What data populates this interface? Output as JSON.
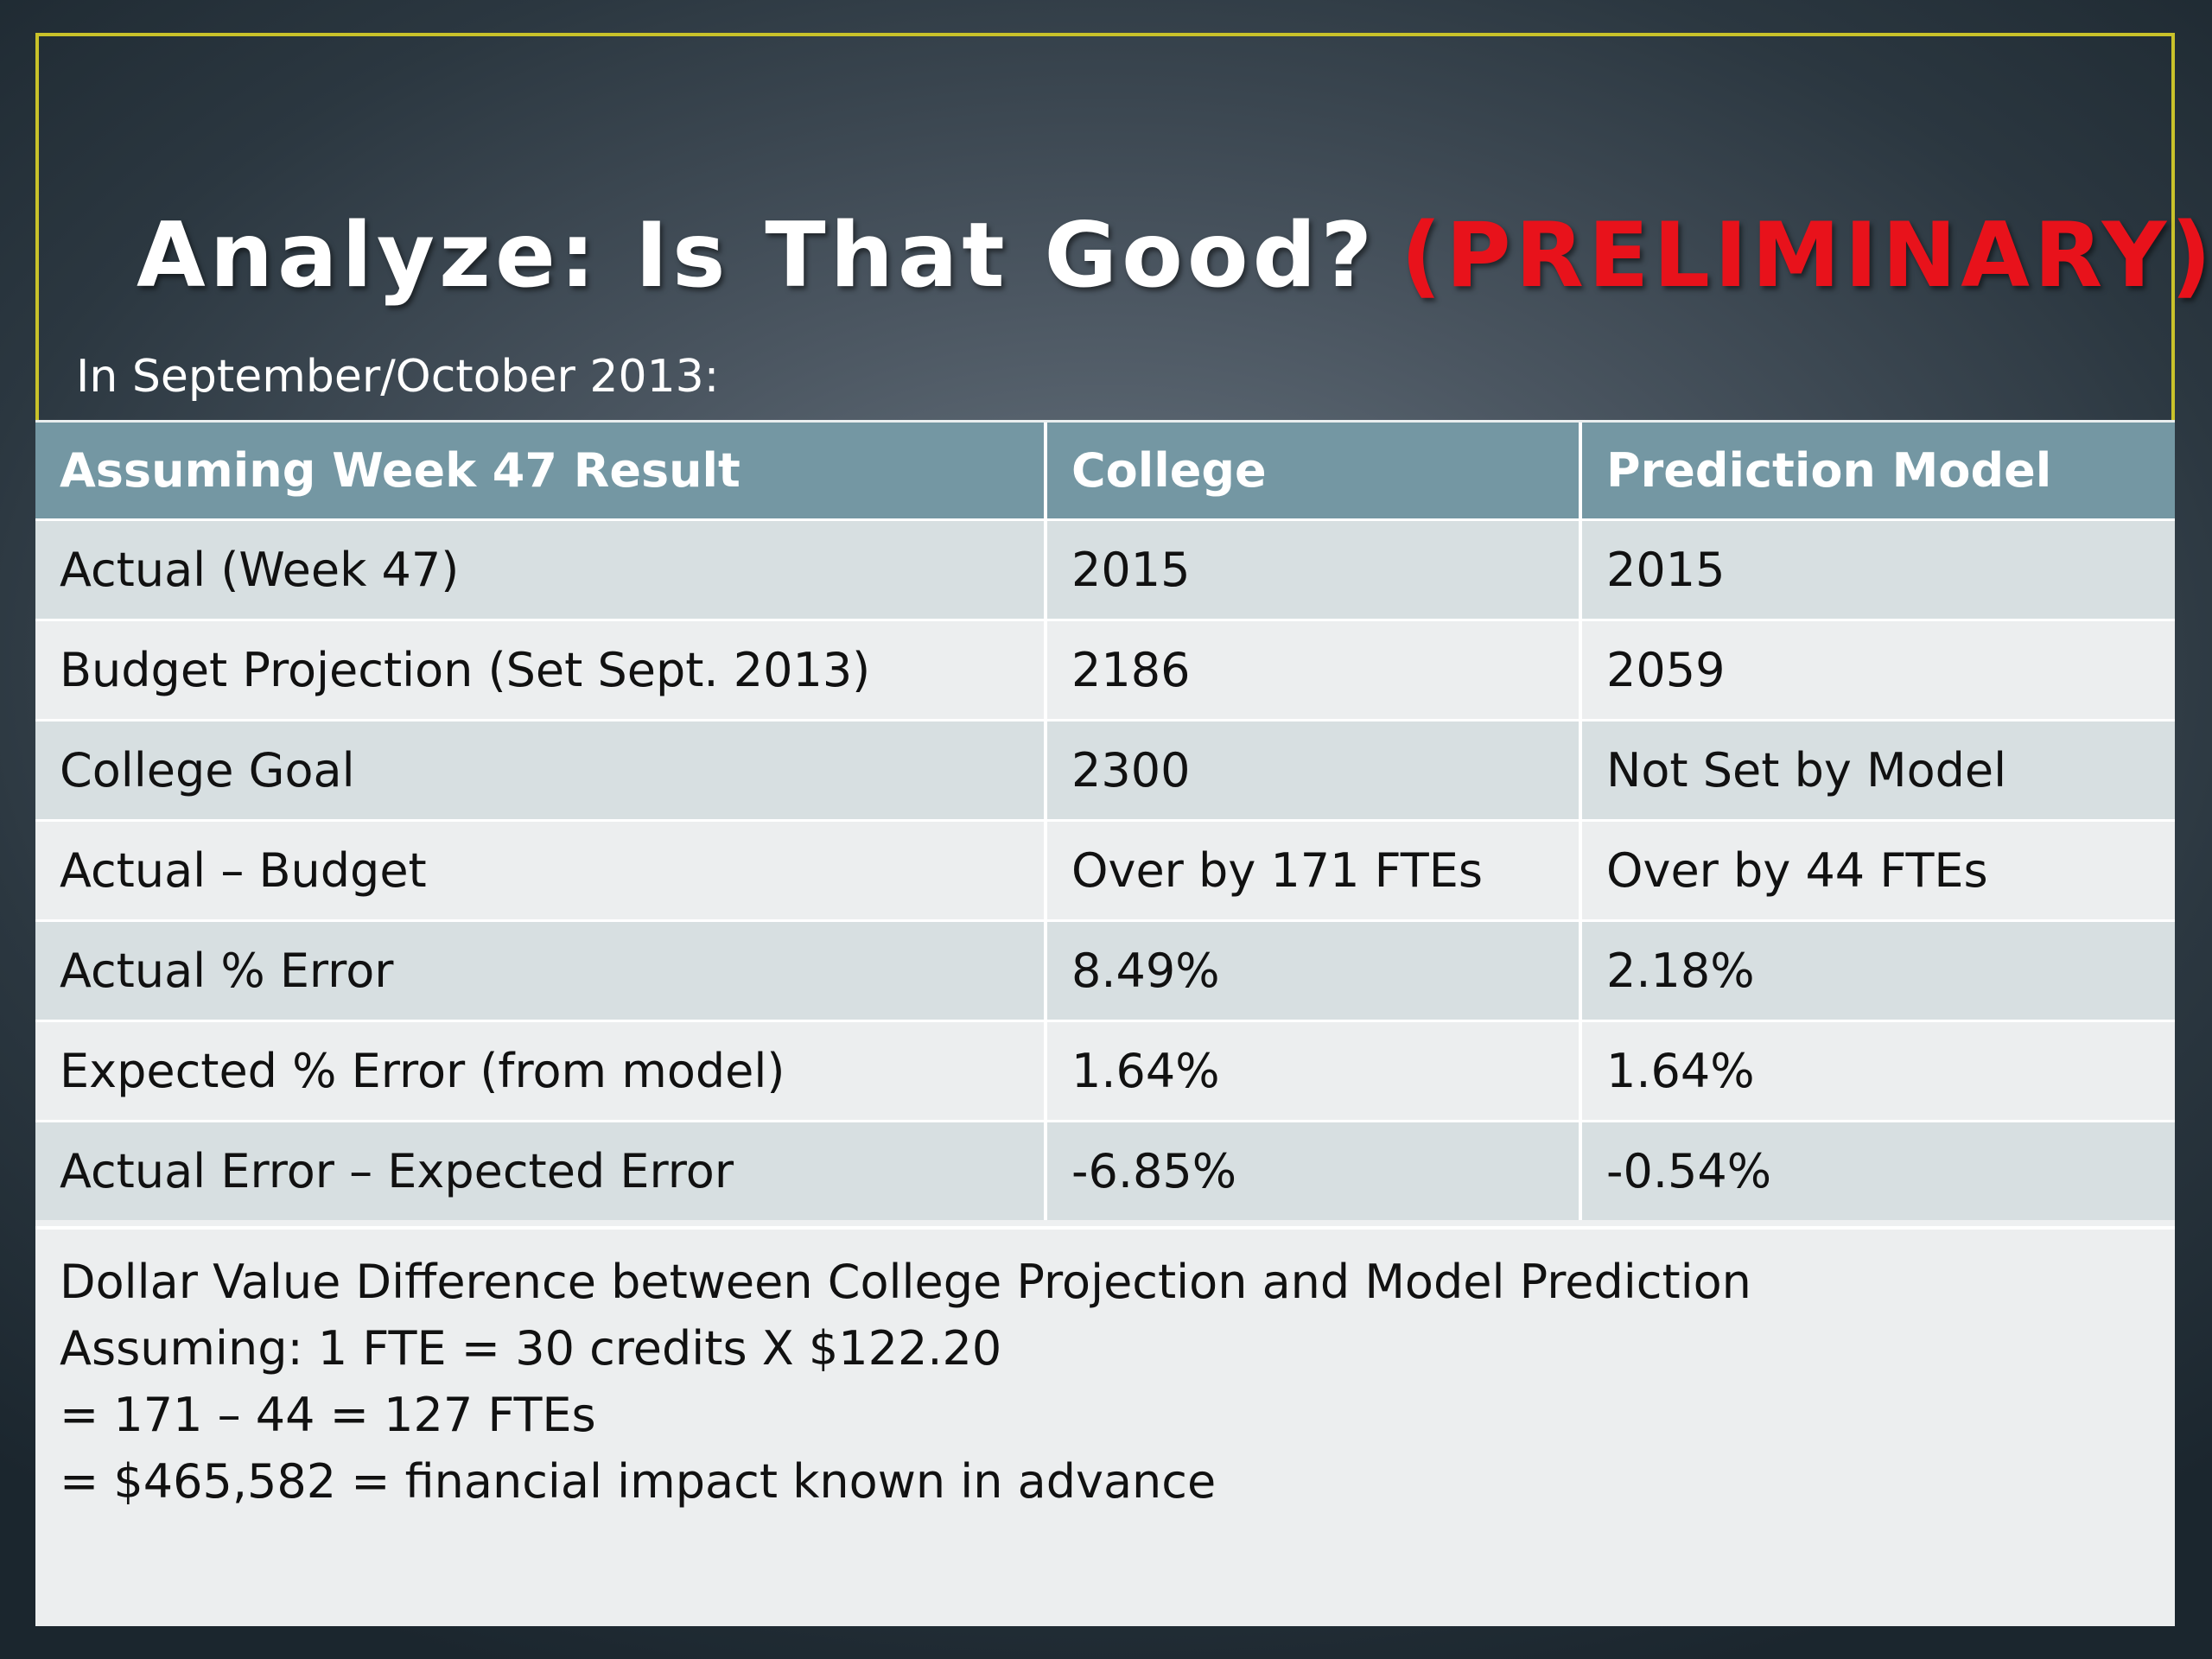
{
  "slide": {
    "title_main": "Analyze: Is That Good?",
    "title_accent": "(PRELIMINARY)",
    "subtitle": "In September/October 2013:"
  },
  "table": {
    "headers": [
      "Assuming Week 47 Result",
      "College",
      "Prediction Model"
    ],
    "rows": [
      [
        "Actual (Week 47)",
        "2015",
        "2015"
      ],
      [
        "Budget Projection (Set Sept. 2013)",
        "2186",
        "2059"
      ],
      [
        "College Goal",
        "2300",
        "Not Set by Model"
      ],
      [
        "Actual – Budget",
        "Over by 171 FTEs",
        "Over by 44 FTEs"
      ],
      [
        "Actual % Error",
        "8.49%",
        "2.18%"
      ],
      [
        "Expected % Error (from model)",
        "1.64%",
        "1.64%"
      ],
      [
        "Actual Error – Expected Error",
        "-6.85%",
        "-0.54%"
      ]
    ]
  },
  "notes": [
    "Dollar Value Difference between College Projection and Model Prediction",
    "Assuming: 1 FTE = 30 credits X $122.20",
    "= 171 – 44 = 127 FTEs",
    "= $465,582 = financial impact known in advance"
  ],
  "colors": {
    "accent_red": "#e8121b",
    "header_teal": "#7497a3",
    "frame_yellow": "#c9c22a"
  }
}
